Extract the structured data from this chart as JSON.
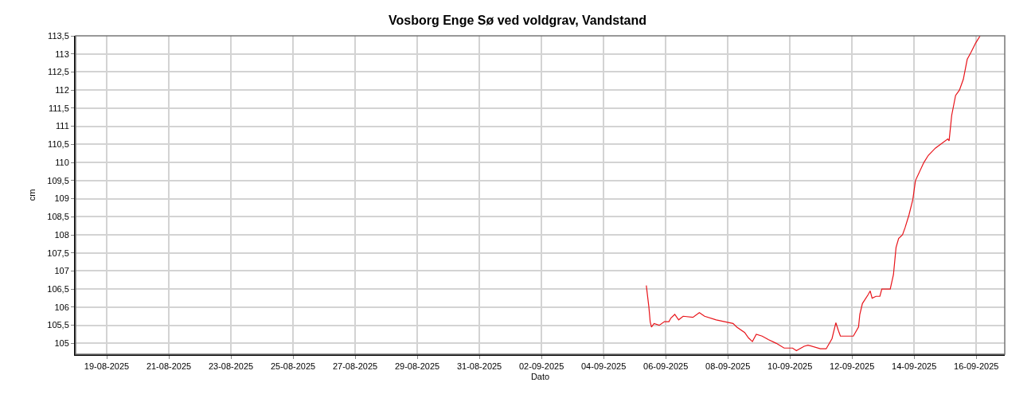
{
  "chart_data": {
    "type": "line",
    "title": "Vosborg Enge Sø ved voldgrav, Vandstand",
    "xlabel": "Dato",
    "ylabel": "cm",
    "x": [
      "2025-09-05T09:00",
      "2025-09-05T11:00",
      "2025-09-05T12:00",
      "2025-09-05T13:00",
      "2025-09-05T15:00",
      "2025-09-05T19:00",
      "2025-09-05T23:00",
      "2025-09-06T02:30",
      "2025-09-06T04:00",
      "2025-09-06T07:00",
      "2025-09-06T10:00",
      "2025-09-06T13:30",
      "2025-09-06T21:00",
      "2025-09-07T02:00",
      "2025-09-07T06:00",
      "2025-09-07T15:00",
      "2025-09-07T21:30",
      "2025-09-08T04:00",
      "2025-09-08T07:00",
      "2025-09-08T13:00",
      "2025-09-08T16:00",
      "2025-09-08T19:00",
      "2025-09-08T22:00",
      "2025-09-09T02:30",
      "2025-09-09T07:30",
      "2025-09-09T13:30",
      "2025-09-09T19:30",
      "2025-09-10T02:00",
      "2025-09-10T05:00",
      "2025-09-10T11:00",
      "2025-09-10T14:00",
      "2025-09-10T23:30",
      "2025-09-11T04:00",
      "2025-09-11T08:30",
      "2025-09-11T11:30",
      "2025-09-11T13:30",
      "2025-09-11T15:00",
      "2025-09-12T01:00",
      "2025-09-12T05:00",
      "2025-09-12T06:00",
      "2025-09-12T08:00",
      "2025-09-12T12:30",
      "2025-09-12T14:00",
      "2025-09-12T15:30",
      "2025-09-12T18:30",
      "2025-09-12T21:30",
      "2025-09-12T23:00",
      "2025-09-13T05:30",
      "2025-09-13T08:00",
      "2025-09-13T10:00",
      "2025-09-13T12:00",
      "2025-09-13T15:00",
      "2025-09-13T17:00",
      "2025-09-13T20:00",
      "2025-09-13T23:00",
      "2025-09-14T01:00",
      "2025-09-14T07:30",
      "2025-09-14T11:00",
      "2025-09-14T16:30",
      "2025-09-15T02:00",
      "2025-09-15T03:00",
      "2025-09-15T05:00",
      "2025-09-15T08:00",
      "2025-09-15T11:00",
      "2025-09-15T14:00",
      "2025-09-15T17:00",
      "2025-09-15T20:00",
      "2025-09-15T23:30",
      "2025-09-16T03:00"
    ],
    "series": [
      {
        "color": "#e8141a",
        "values": [
          106.6,
          106.0,
          105.6,
          105.45,
          105.55,
          105.5,
          105.6,
          105.6,
          105.7,
          105.8,
          105.65,
          105.75,
          105.72,
          105.85,
          105.75,
          105.65,
          105.6,
          105.55,
          105.45,
          105.3,
          105.15,
          105.05,
          105.25,
          105.2,
          105.1,
          105.0,
          104.87,
          104.87,
          104.8,
          104.92,
          104.95,
          104.85,
          104.85,
          105.13,
          105.57,
          105.35,
          105.2,
          105.2,
          105.45,
          105.8,
          106.1,
          106.35,
          106.45,
          106.25,
          106.3,
          106.3,
          106.5,
          106.5,
          106.9,
          107.65,
          107.9,
          108.0,
          108.2,
          108.55,
          108.98,
          109.5,
          110.0,
          110.2,
          110.4,
          110.65,
          110.6,
          111.3,
          111.85,
          112.0,
          112.3,
          112.85,
          113.05,
          113.3,
          113.5
        ]
      }
    ],
    "xlim": [
      "2025-08-18T00:00",
      "2025-09-16T22:00"
    ],
    "xticks": [
      {
        "value": "2025-08-19",
        "label": "19-08-2025"
      },
      {
        "value": "2025-08-21",
        "label": "21-08-2025"
      },
      {
        "value": "2025-08-23",
        "label": "23-08-2025"
      },
      {
        "value": "2025-08-25",
        "label": "25-08-2025"
      },
      {
        "value": "2025-08-27",
        "label": "27-08-2025"
      },
      {
        "value": "2025-08-29",
        "label": "29-08-2025"
      },
      {
        "value": "2025-08-31",
        "label": "31-08-2025"
      },
      {
        "value": "2025-09-02",
        "label": "02-09-2025"
      },
      {
        "value": "2025-09-04",
        "label": "04-09-2025"
      },
      {
        "value": "2025-09-06",
        "label": "06-09-2025"
      },
      {
        "value": "2025-09-08",
        "label": "08-09-2025"
      },
      {
        "value": "2025-09-10",
        "label": "10-09-2025"
      },
      {
        "value": "2025-09-12",
        "label": "12-09-2025"
      },
      {
        "value": "2025-09-14",
        "label": "14-09-2025"
      },
      {
        "value": "2025-09-16",
        "label": "16-09-2025"
      }
    ],
    "ylim": [
      104.7,
      113.5
    ],
    "yticks": [
      105,
      {
        "value": 105.5,
        "label": "105,5"
      },
      106,
      {
        "value": 106.5,
        "label": "106,5"
      },
      107,
      {
        "value": 107.5,
        "label": "107,5"
      },
      108,
      {
        "value": 108.5,
        "label": "108,5"
      },
      109,
      {
        "value": 109.5,
        "label": "109,5"
      },
      110,
      {
        "value": 110.5,
        "label": "110,5"
      },
      111,
      {
        "value": 111.5,
        "label": "111,5"
      },
      112,
      {
        "value": 112.5,
        "label": "112,5"
      },
      113,
      {
        "value": 113.5,
        "label": "113,5"
      }
    ],
    "grid": true,
    "marker": "none",
    "line_style": "solid"
  }
}
